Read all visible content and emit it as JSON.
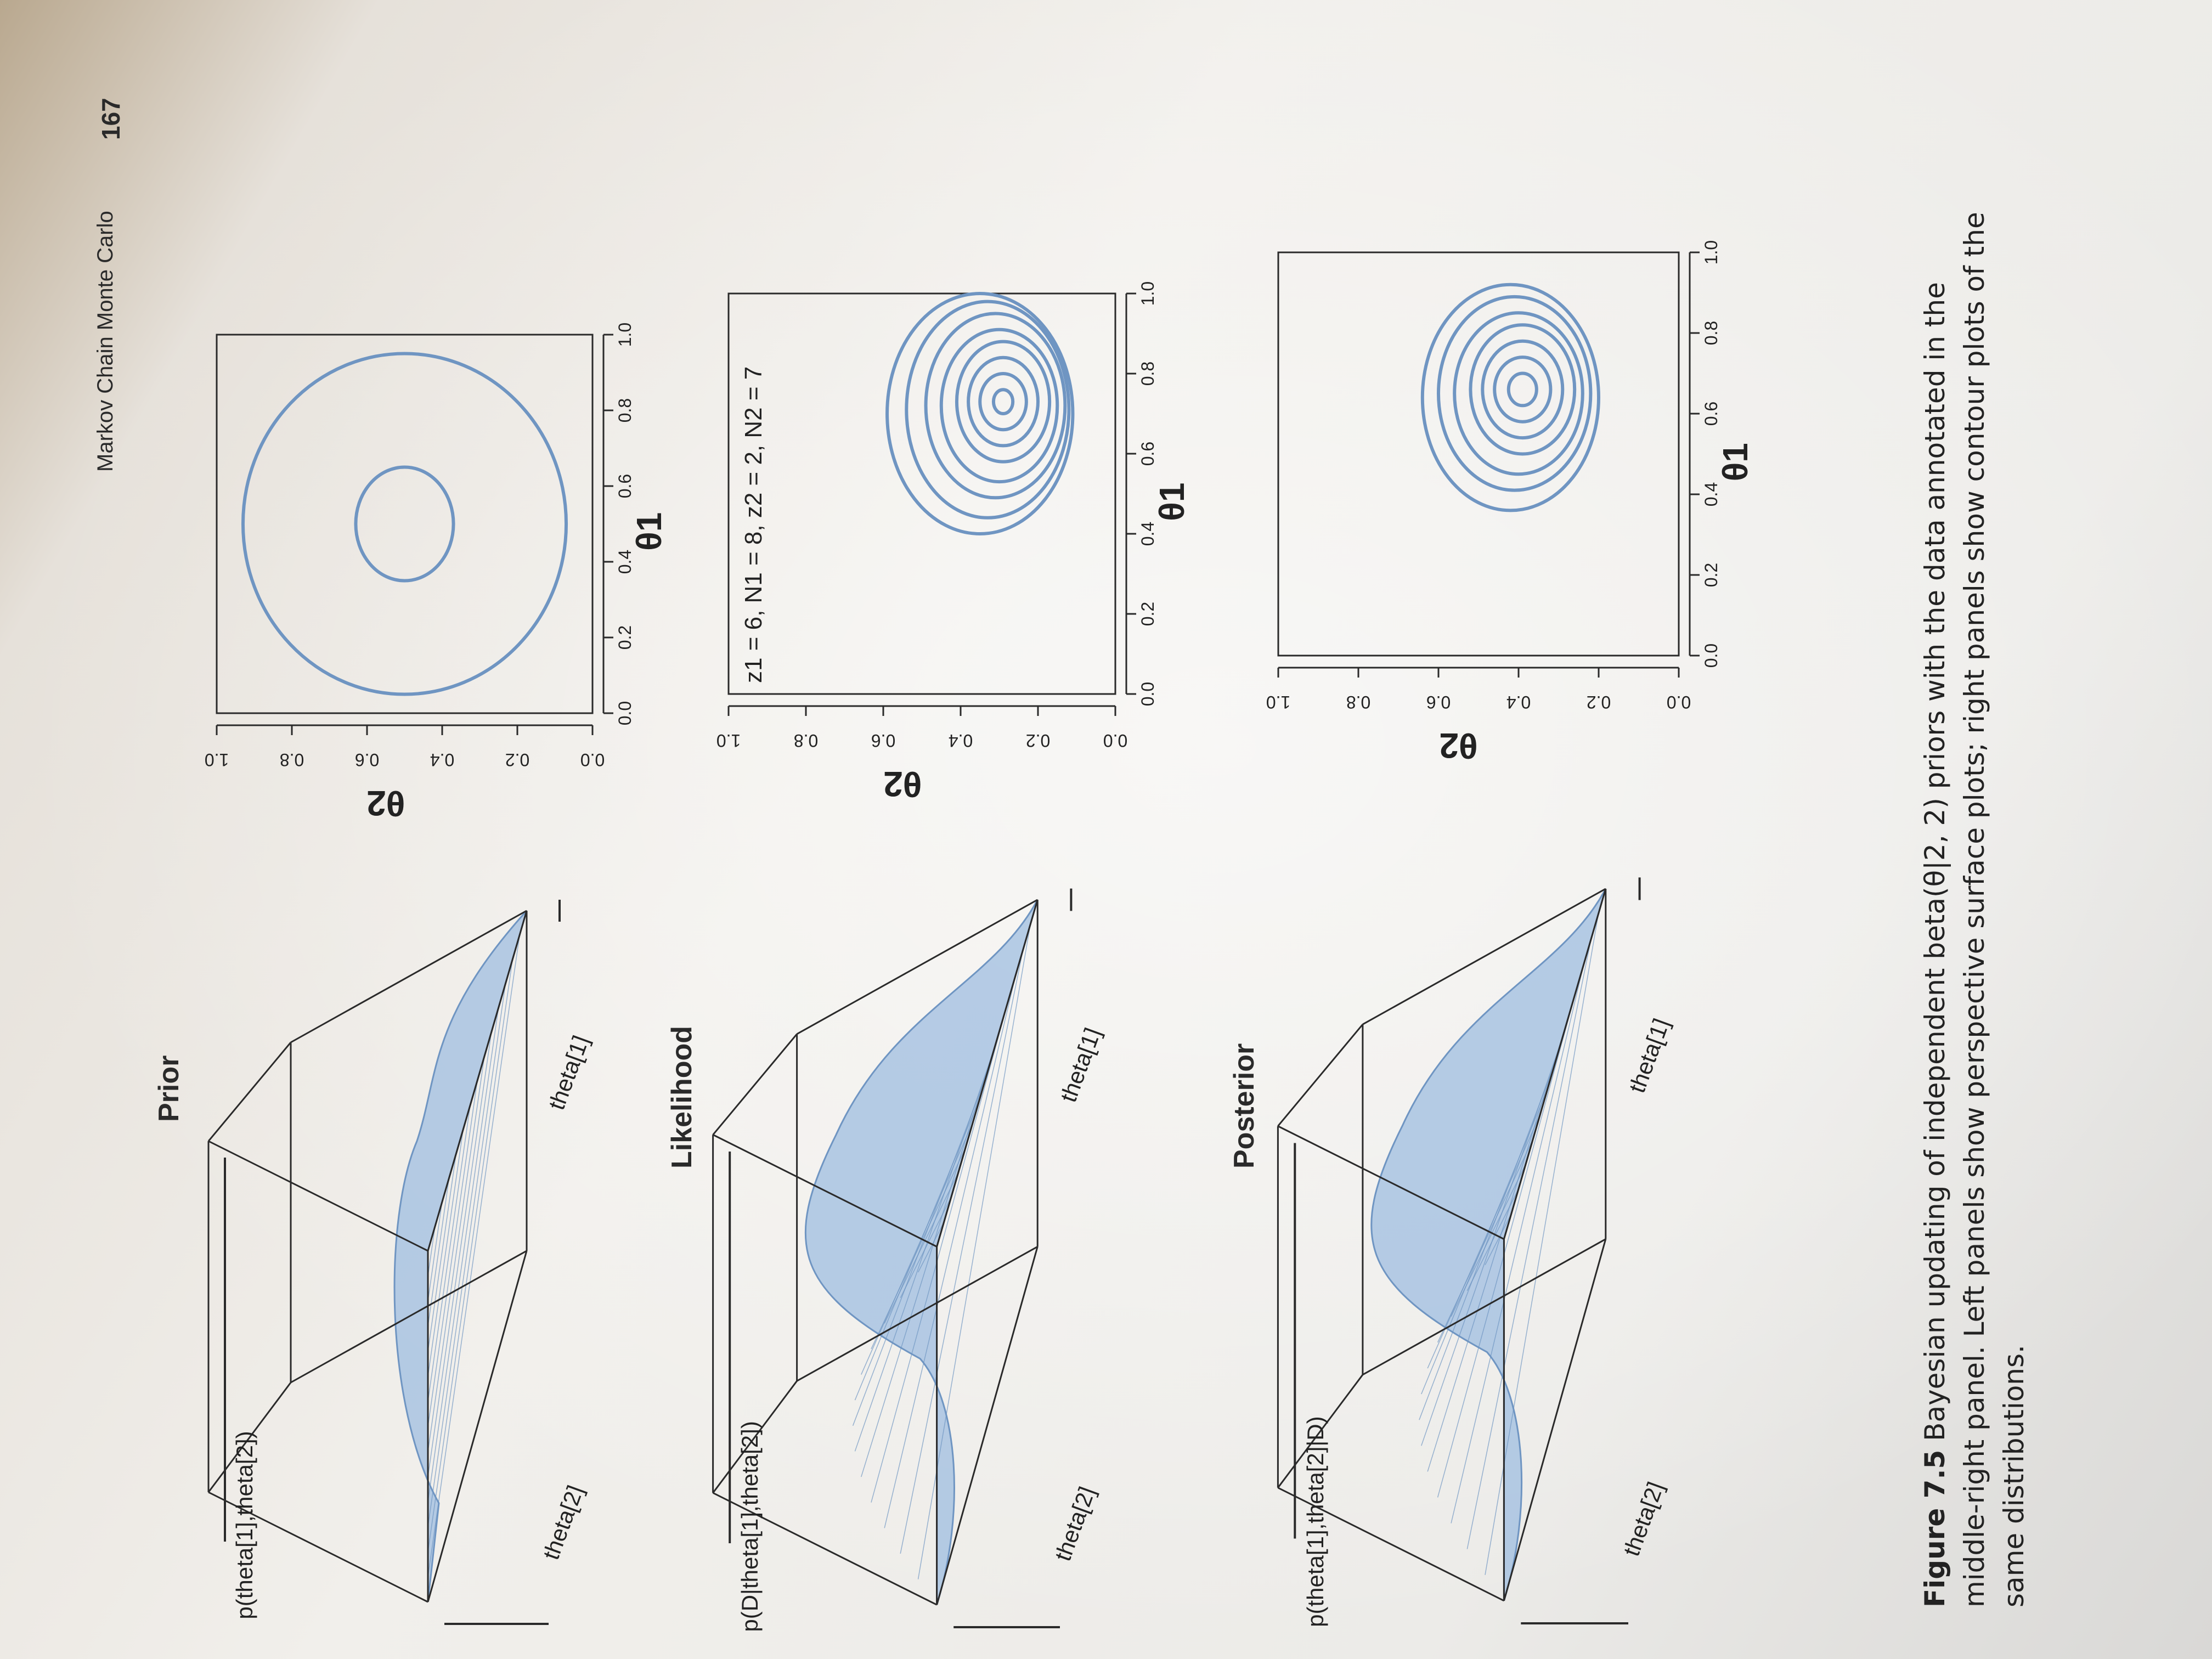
{
  "header": {
    "running_title": "Markov Chain Monte Carlo",
    "page_number": "167"
  },
  "panels": [
    {
      "title": "Prior",
      "surface": {
        "z_label": "p(theta[1],theta[2])",
        "x_label": "theta[1]",
        "y_label": "theta[2]"
      },
      "contour": {
        "annotation": "",
        "xlabel": "θ1",
        "ylabel": "θ2",
        "xticks": [
          "0.0",
          "0.2",
          "0.4",
          "0.6",
          "0.8",
          "1.0"
        ],
        "yticks": [
          "0.0",
          "0.2",
          "0.4",
          "0.6",
          "0.8",
          "1.0"
        ]
      }
    },
    {
      "title": "Likelihood",
      "surface": {
        "z_label": "p(D|theta[1],theta[2])",
        "x_label": "theta[1]",
        "y_label": "theta[2]"
      },
      "contour": {
        "annotation": "z1 = 6, N1 = 8, z2 = 2, N2 = 7",
        "xlabel": "θ1",
        "ylabel": "θ2",
        "xticks": [
          "0.0",
          "0.2",
          "0.4",
          "0.6",
          "0.8",
          "1.0"
        ],
        "yticks": [
          "0.0",
          "0.2",
          "0.4",
          "0.6",
          "0.8",
          "1.0"
        ]
      }
    },
    {
      "title": "Posterior",
      "surface": {
        "z_label": "p(theta[1],theta[2]|D)",
        "x_label": "theta[1]",
        "y_label": "theta[2]"
      },
      "contour": {
        "annotation": "",
        "xlabel": "θ1",
        "ylabel": "θ2",
        "xticks": [
          "0.0",
          "0.2",
          "0.4",
          "0.6",
          "0.8",
          "1.0"
        ],
        "yticks": [
          "0.0",
          "0.2",
          "0.4",
          "0.6",
          "0.8",
          "1.0"
        ]
      }
    }
  ],
  "caption": {
    "label": "Figure 7.5",
    "lines": [
      "Bayesian updating of independent beta(θ|2, 2) priors with the data annotated in the",
      "middle-right panel. Left panels show perspective surface plots; right panels show contour plots of the",
      "same distributions."
    ]
  },
  "colors": {
    "ink": "#2a2a2a",
    "curve": "#6f95c2",
    "surface": "#9fbde0"
  }
}
